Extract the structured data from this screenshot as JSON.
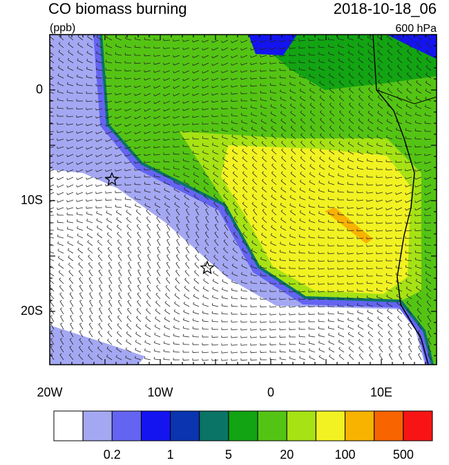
{
  "header": {
    "title": "CO biomass burning",
    "units": "(ppb)",
    "date": "2018-10-18_06",
    "level": "600 hPa"
  },
  "axes": {
    "x_labels": [
      "20W",
      "10W",
      "0",
      "10E"
    ],
    "y_labels": [
      "0",
      "10S",
      "20S"
    ]
  },
  "colorbar": {
    "labels": [
      "0.2",
      "1",
      "5",
      "20",
      "100",
      "500"
    ],
    "colors": [
      "#ffffff",
      "#a4a8f2",
      "#6464f2",
      "#1414f0",
      "#0a34b0",
      "#0a7466",
      "#12a412",
      "#54c414",
      "#a6e214",
      "#f2f222",
      "#f8b200",
      "#f86400",
      "#f81414"
    ]
  }
}
